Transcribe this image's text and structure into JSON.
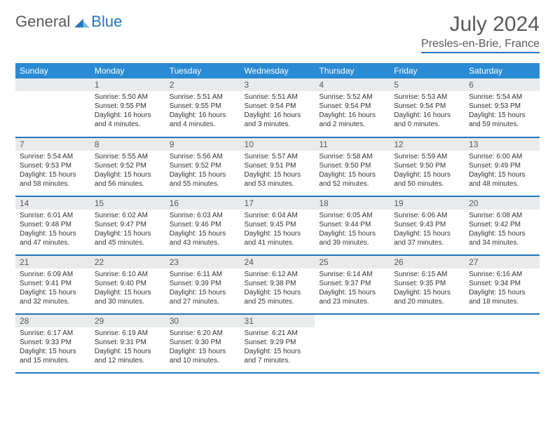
{
  "logo": {
    "text1": "General",
    "text2": "Blue"
  },
  "title": "July 2024",
  "subtitle": "Presles-en-Brie, France",
  "header_bg": "#2a8bd4",
  "accent": "#2176bc",
  "daynum_bg": "#e9eaeb",
  "text_color": "#333333",
  "days_of_week": [
    "Sunday",
    "Monday",
    "Tuesday",
    "Wednesday",
    "Thursday",
    "Friday",
    "Saturday"
  ],
  "start_offset": 1,
  "cells": [
    {
      "n": "1",
      "sr": "5:50 AM",
      "ss": "9:55 PM",
      "dl": "16 hours and 4 minutes."
    },
    {
      "n": "2",
      "sr": "5:51 AM",
      "ss": "9:55 PM",
      "dl": "16 hours and 4 minutes."
    },
    {
      "n": "3",
      "sr": "5:51 AM",
      "ss": "9:54 PM",
      "dl": "16 hours and 3 minutes."
    },
    {
      "n": "4",
      "sr": "5:52 AM",
      "ss": "9:54 PM",
      "dl": "16 hours and 2 minutes."
    },
    {
      "n": "5",
      "sr": "5:53 AM",
      "ss": "9:54 PM",
      "dl": "16 hours and 0 minutes."
    },
    {
      "n": "6",
      "sr": "5:54 AM",
      "ss": "9:53 PM",
      "dl": "15 hours and 59 minutes."
    },
    {
      "n": "7",
      "sr": "5:54 AM",
      "ss": "9:53 PM",
      "dl": "15 hours and 58 minutes."
    },
    {
      "n": "8",
      "sr": "5:55 AM",
      "ss": "9:52 PM",
      "dl": "15 hours and 56 minutes."
    },
    {
      "n": "9",
      "sr": "5:56 AM",
      "ss": "9:52 PM",
      "dl": "15 hours and 55 minutes."
    },
    {
      "n": "10",
      "sr": "5:57 AM",
      "ss": "9:51 PM",
      "dl": "15 hours and 53 minutes."
    },
    {
      "n": "11",
      "sr": "5:58 AM",
      "ss": "9:50 PM",
      "dl": "15 hours and 52 minutes."
    },
    {
      "n": "12",
      "sr": "5:59 AM",
      "ss": "9:50 PM",
      "dl": "15 hours and 50 minutes."
    },
    {
      "n": "13",
      "sr": "6:00 AM",
      "ss": "9:49 PM",
      "dl": "15 hours and 48 minutes."
    },
    {
      "n": "14",
      "sr": "6:01 AM",
      "ss": "9:48 PM",
      "dl": "15 hours and 47 minutes."
    },
    {
      "n": "15",
      "sr": "6:02 AM",
      "ss": "9:47 PM",
      "dl": "15 hours and 45 minutes."
    },
    {
      "n": "16",
      "sr": "6:03 AM",
      "ss": "9:46 PM",
      "dl": "15 hours and 43 minutes."
    },
    {
      "n": "17",
      "sr": "6:04 AM",
      "ss": "9:45 PM",
      "dl": "15 hours and 41 minutes."
    },
    {
      "n": "18",
      "sr": "6:05 AM",
      "ss": "9:44 PM",
      "dl": "15 hours and 39 minutes."
    },
    {
      "n": "19",
      "sr": "6:06 AM",
      "ss": "9:43 PM",
      "dl": "15 hours and 37 minutes."
    },
    {
      "n": "20",
      "sr": "6:08 AM",
      "ss": "9:42 PM",
      "dl": "15 hours and 34 minutes."
    },
    {
      "n": "21",
      "sr": "6:09 AM",
      "ss": "9:41 PM",
      "dl": "15 hours and 32 minutes."
    },
    {
      "n": "22",
      "sr": "6:10 AM",
      "ss": "9:40 PM",
      "dl": "15 hours and 30 minutes."
    },
    {
      "n": "23",
      "sr": "6:11 AM",
      "ss": "9:39 PM",
      "dl": "15 hours and 27 minutes."
    },
    {
      "n": "24",
      "sr": "6:12 AM",
      "ss": "9:38 PM",
      "dl": "15 hours and 25 minutes."
    },
    {
      "n": "25",
      "sr": "6:14 AM",
      "ss": "9:37 PM",
      "dl": "15 hours and 23 minutes."
    },
    {
      "n": "26",
      "sr": "6:15 AM",
      "ss": "9:35 PM",
      "dl": "15 hours and 20 minutes."
    },
    {
      "n": "27",
      "sr": "6:16 AM",
      "ss": "9:34 PM",
      "dl": "15 hours and 18 minutes."
    },
    {
      "n": "28",
      "sr": "6:17 AM",
      "ss": "9:33 PM",
      "dl": "15 hours and 15 minutes."
    },
    {
      "n": "29",
      "sr": "6:19 AM",
      "ss": "9:31 PM",
      "dl": "15 hours and 12 minutes."
    },
    {
      "n": "30",
      "sr": "6:20 AM",
      "ss": "9:30 PM",
      "dl": "15 hours and 10 minutes."
    },
    {
      "n": "31",
      "sr": "6:21 AM",
      "ss": "9:29 PM",
      "dl": "15 hours and 7 minutes."
    }
  ],
  "labels": {
    "sunrise": "Sunrise:",
    "sunset": "Sunset:",
    "daylight": "Daylight:"
  }
}
